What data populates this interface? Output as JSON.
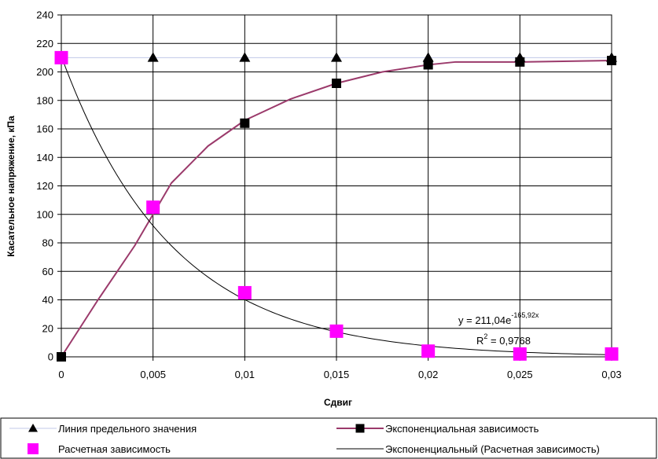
{
  "chart_data": {
    "type": "scatter",
    "xlabel": "Сдвиг",
    "ylabel": "Касательное напряжение, кПа",
    "xlim": [
      0,
      0.03
    ],
    "ylim": [
      0,
      240
    ],
    "x_ticks": [
      "0",
      "0,005",
      "0,01",
      "0,015",
      "0,02",
      "0,025",
      "0,03"
    ],
    "y_ticks": [
      "0",
      "20",
      "40",
      "60",
      "80",
      "100",
      "120",
      "140",
      "160",
      "180",
      "200",
      "220",
      "240"
    ],
    "grid": true,
    "legend_position": "bottom",
    "series": [
      {
        "name": "Линия предельного значения",
        "marker": "triangle",
        "color": "#000000",
        "line_color": "#c0c8e8",
        "x": [
          0,
          0.005,
          0.01,
          0.015,
          0.02,
          0.025,
          0.03
        ],
        "y": [
          210,
          210,
          210,
          210,
          210,
          210,
          210
        ]
      },
      {
        "name": "Экспоненциальная зависимость",
        "marker": "square",
        "color": "#000000",
        "line_color": "#9b3a6b",
        "x": [
          0,
          0.01,
          0.015,
          0.02,
          0.025,
          0.03
        ],
        "y": [
          0,
          164,
          192,
          205,
          207,
          208
        ],
        "curve_x": [
          0,
          0.002,
          0.004,
          0.005,
          0.006,
          0.008,
          0.01,
          0.0125,
          0.015,
          0.0175,
          0.02,
          0.0215,
          0.025,
          0.03
        ],
        "curve_y": [
          0,
          40,
          78,
          100,
          122,
          148,
          166,
          181,
          192,
          200,
          205,
          207,
          207,
          208
        ]
      },
      {
        "name": "Расчетная зависимость",
        "marker": "square",
        "color": "#ff00ff",
        "x": [
          0,
          0.005,
          0.01,
          0.015,
          0.02,
          0.025,
          0.03
        ],
        "y": [
          210,
          105,
          45,
          18,
          4,
          2,
          2
        ]
      },
      {
        "name": "Экспоненциальный (Расчетная зависимость)",
        "type": "trendline",
        "color": "#000000",
        "formula": {
          "a": 211.04,
          "b": -165.92
        }
      }
    ],
    "annotations": {
      "equation_main": "y = 211,04e",
      "equation_exp": "-165,92x",
      "r2_label": "R",
      "r2_sup": "2",
      "r2_value": " = 0,9768"
    }
  }
}
